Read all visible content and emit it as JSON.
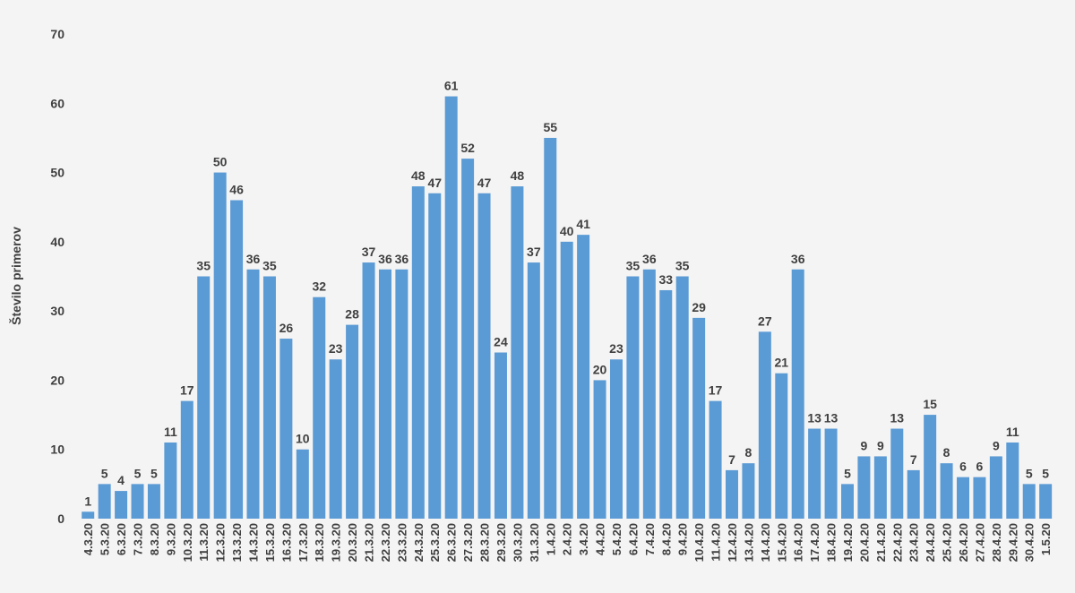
{
  "chart_data": {
    "type": "bar",
    "title": "",
    "xlabel": "",
    "ylabel": "Število primerov",
    "ylim": [
      0,
      70
    ],
    "yticks": [
      0,
      10,
      20,
      30,
      40,
      50,
      60,
      70
    ],
    "grid": false,
    "bar_color": "#5b9bd5",
    "categories": [
      "4.3.20",
      "5.3.20",
      "6.3.20",
      "7.3.20",
      "8.3.20",
      "9.3.20",
      "10.3.20",
      "11.3.20",
      "12.3.20",
      "13.3.20",
      "14.3.20",
      "15.3.20",
      "16.3.20",
      "17.3.20",
      "18.3.20",
      "19.3.20",
      "20.3.20",
      "21.3.20",
      "22.3.20",
      "23.3.20",
      "24.3.20",
      "25.3.20",
      "26.3.20",
      "27.3.20",
      "28.3.20",
      "29.3.20",
      "30.3.20",
      "31.3.20",
      "1.4.20",
      "2.4.20",
      "3.4.20",
      "4.4.20",
      "5.4.20",
      "6.4.20",
      "7.4.20",
      "8.4.20",
      "9.4.20",
      "10.4.20",
      "11.4.20",
      "12.4.20",
      "13.4.20",
      "14.4.20",
      "15.4.20",
      "16.4.20",
      "17.4.20",
      "18.4.20",
      "19.4.20",
      "20.4.20",
      "21.4.20",
      "22.4.20",
      "23.4.20",
      "24.4.20",
      "25.4.20",
      "26.4.20",
      "27.4.20",
      "28.4.20",
      "29.4.20",
      "30.4.20",
      "1.5.20"
    ],
    "values": [
      1,
      5,
      4,
      5,
      5,
      11,
      17,
      35,
      50,
      46,
      36,
      35,
      26,
      10,
      32,
      23,
      28,
      37,
      36,
      36,
      48,
      47,
      61,
      52,
      47,
      24,
      48,
      37,
      55,
      40,
      41,
      20,
      23,
      35,
      36,
      33,
      35,
      29,
      17,
      7,
      8,
      27,
      21,
      36,
      13,
      13,
      5,
      9,
      9,
      13,
      7,
      15,
      8,
      6,
      6,
      9,
      11,
      5,
      5
    ]
  }
}
